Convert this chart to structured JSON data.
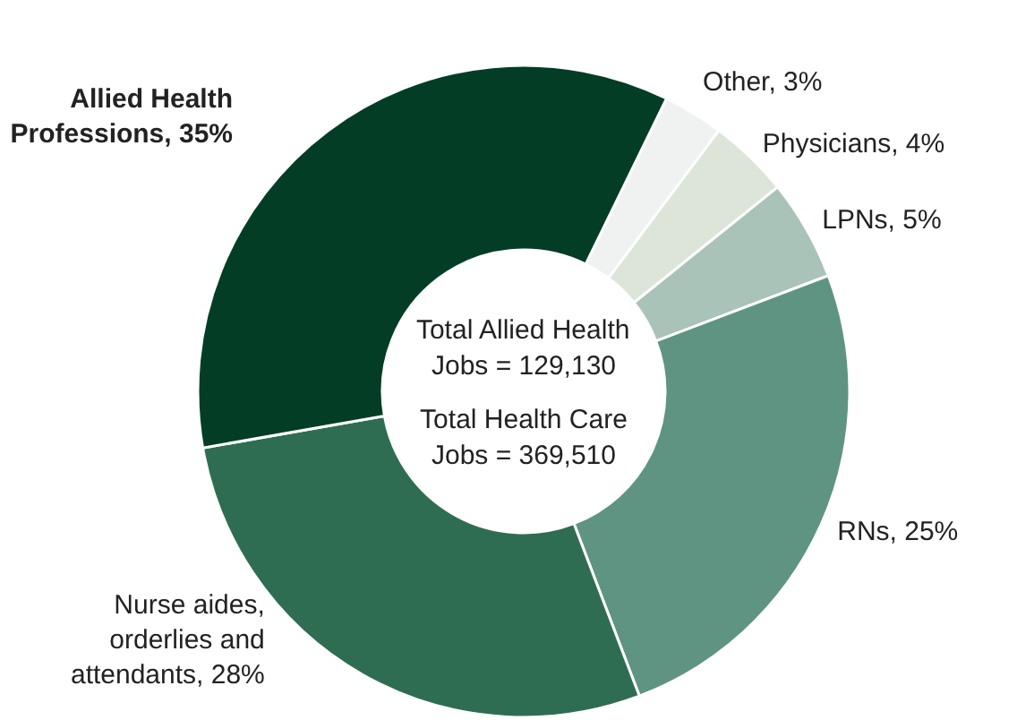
{
  "chart_data": {
    "type": "donut",
    "categories": [
      "Other, 3%",
      "Physicians, 4%",
      "LPNs, 5%",
      "RNs, 25%",
      "Nurse aides, orderlies and attendants, 28%",
      "Allied Health Professions, 35%"
    ],
    "values": [
      3,
      4,
      5,
      25,
      28,
      35
    ],
    "colors": [
      "#f0f2f1",
      "#dde5d9",
      "#a9c3b9",
      "#5f9482",
      "#2f6d52",
      "#033d26"
    ],
    "annotations": [
      "Total Allied Health Jobs = 129,130",
      "Total Health Care Jobs = 369,510"
    ]
  }
}
